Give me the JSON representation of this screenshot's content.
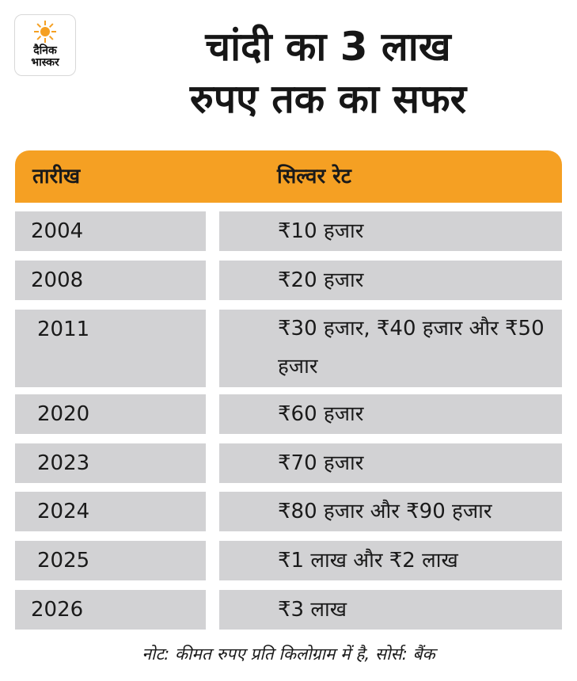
{
  "brand": {
    "logo_line1": "दैनिक",
    "logo_line2": "भास्कर",
    "accent_color": "#f5a023",
    "cell_color": "#d2d2d4"
  },
  "title": {
    "line1": "चांदी का 3 लाख",
    "line2": "रुपए तक का सफर"
  },
  "table": {
    "headers": {
      "date": "तारीख",
      "rate": "सिल्वर रेट"
    },
    "rows": [
      {
        "year": "2004",
        "rate": "₹10 हजार"
      },
      {
        "year": "2008",
        "rate": "₹20 हजार"
      },
      {
        "year": "2011",
        "rate": "₹30 हजार, ₹40 हजार और ₹50 हजार"
      },
      {
        "year": "2020",
        "rate": "₹60 हजार"
      },
      {
        "year": "2023",
        "rate": "₹70 हजार"
      },
      {
        "year": "2024",
        "rate": "₹80 हजार और ₹90 हजार"
      },
      {
        "year": "2025",
        "rate": "₹1 लाख और ₹2 लाख"
      },
      {
        "year": "2026",
        "rate": "₹3 लाख"
      }
    ]
  },
  "note": "नोट: कीमत रुपए प्रति किलोग्राम में है, सोर्स: बैंक"
}
